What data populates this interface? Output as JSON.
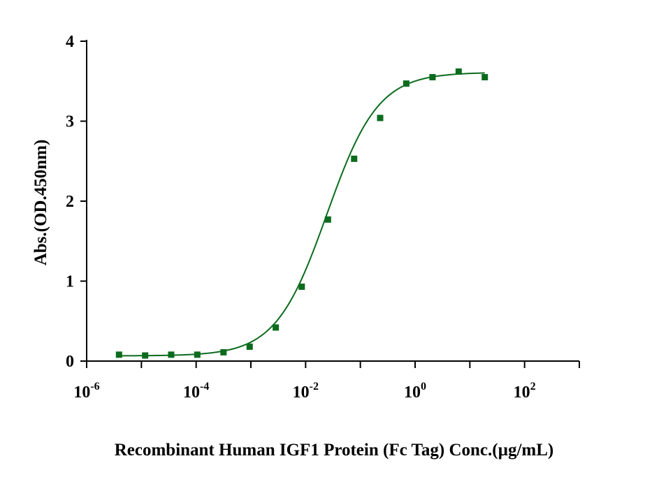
{
  "chart_data": {
    "type": "scatter",
    "title": "",
    "xlabel": "Recombinant Human IGF1 Protein (Fc Tag) Conc.(µg/mL)",
    "ylabel": "Abs.(OD.450nm)",
    "x_scale": "log",
    "xlim": [
      1e-06,
      1000
    ],
    "ylim": [
      0,
      4
    ],
    "grid": false,
    "legend": "none",
    "x_ticks": [
      {
        "base": "10",
        "exp": "-6",
        "value": 1e-06
      },
      {
        "base": "10",
        "exp": "-4",
        "value": 0.0001
      },
      {
        "base": "10",
        "exp": "-2",
        "value": 0.01
      },
      {
        "base": "10",
        "exp": "0",
        "value": 1
      },
      {
        "base": "10",
        "exp": "2",
        "value": 100
      }
    ],
    "y_ticks": [
      "0",
      "1",
      "2",
      "3",
      "4"
    ],
    "series": [
      {
        "color": "#0b6b1e",
        "marker": "square",
        "x": [
          3.9e-06,
          1.17e-05,
          3.5e-05,
          0.000105,
          0.000316,
          0.00095,
          0.00285,
          0.0085,
          0.0256,
          0.077,
          0.23,
          0.69,
          2.08,
          6.25,
          18.75
        ],
        "y": [
          0.08,
          0.07,
          0.08,
          0.08,
          0.11,
          0.18,
          0.42,
          0.93,
          1.77,
          2.53,
          3.04,
          3.47,
          3.55,
          3.62,
          3.55
        ]
      }
    ],
    "fit_curve": {
      "model": "4PL",
      "bottom": 0.065,
      "top": 3.61,
      "ec50": 0.0245,
      "hill": 0.93,
      "x_range": [
        3.9e-06,
        18.75
      ],
      "color": "#0b6b1e"
    }
  }
}
